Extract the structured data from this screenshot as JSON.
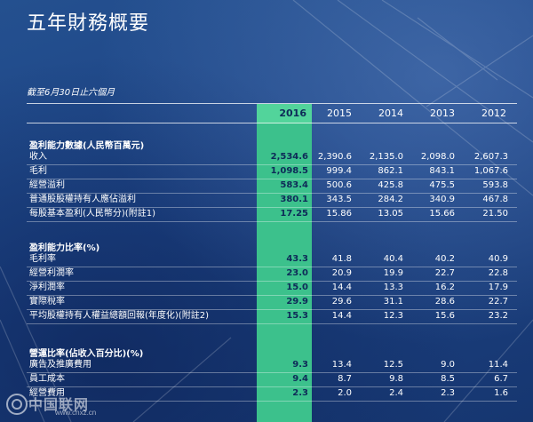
{
  "title": "五年財務概要",
  "period": "截至6月30日止六個月",
  "columns": [
    "2016",
    "2015",
    "2014",
    "2013",
    "2012"
  ],
  "sections": [
    {
      "title": "盈利能力數據(人民幣百萬元)",
      "rows": [
        {
          "label": "收入",
          "values": [
            "2,534.6",
            "2,390.6",
            "2,135.0",
            "2,098.0",
            "2,607.3"
          ]
        },
        {
          "label": "毛利",
          "values": [
            "1,098.5",
            "999.4",
            "862.1",
            "843.1",
            "1,067.6"
          ]
        },
        {
          "label": "經營溢利",
          "values": [
            "583.4",
            "500.6",
            "425.8",
            "475.5",
            "593.8"
          ]
        },
        {
          "label": "普通股股權持有人應佔溢利",
          "values": [
            "380.1",
            "343.5",
            "284.2",
            "340.9",
            "467.8"
          ]
        },
        {
          "label": "每股基本盈利(人民幣分)(附註1)",
          "values": [
            "17.25",
            "15.86",
            "13.05",
            "15.66",
            "21.50"
          ]
        }
      ]
    },
    {
      "title": "盈利能力比率(%)",
      "rows": [
        {
          "label": "毛利率",
          "values": [
            "43.3",
            "41.8",
            "40.4",
            "40.2",
            "40.9"
          ]
        },
        {
          "label": "經營利潤率",
          "values": [
            "23.0",
            "20.9",
            "19.9",
            "22.7",
            "22.8"
          ]
        },
        {
          "label": "淨利潤率",
          "values": [
            "15.0",
            "14.4",
            "13.3",
            "16.2",
            "17.9"
          ]
        },
        {
          "label": "實際稅率",
          "values": [
            "29.9",
            "29.6",
            "31.1",
            "28.6",
            "22.7"
          ]
        },
        {
          "label": "平均股權持有人權益總額回報(年度化)(附註2)",
          "values": [
            "15.3",
            "14.4",
            "12.3",
            "15.6",
            "23.2"
          ]
        }
      ]
    },
    {
      "title": "營運比率(佔收入百分比)(%)",
      "rows": [
        {
          "label": "廣告及推廣費用",
          "values": [
            "9.3",
            "13.4",
            "12.5",
            "9.0",
            "11.4"
          ]
        },
        {
          "label": "員工成本",
          "values": [
            "9.4",
            "8.7",
            "9.8",
            "8.5",
            "6.7"
          ]
        },
        {
          "label": "經營費用",
          "values": [
            "2.3",
            "2.0",
            "2.4",
            "2.3",
            "1.6"
          ]
        }
      ]
    }
  ],
  "watermark": {
    "text": "中国联网",
    "url": "www.cnxz.cn"
  },
  "colors": {
    "background": "#1d4486",
    "highlight": "#3cc18c",
    "highlight_text": "#0e2a58"
  }
}
